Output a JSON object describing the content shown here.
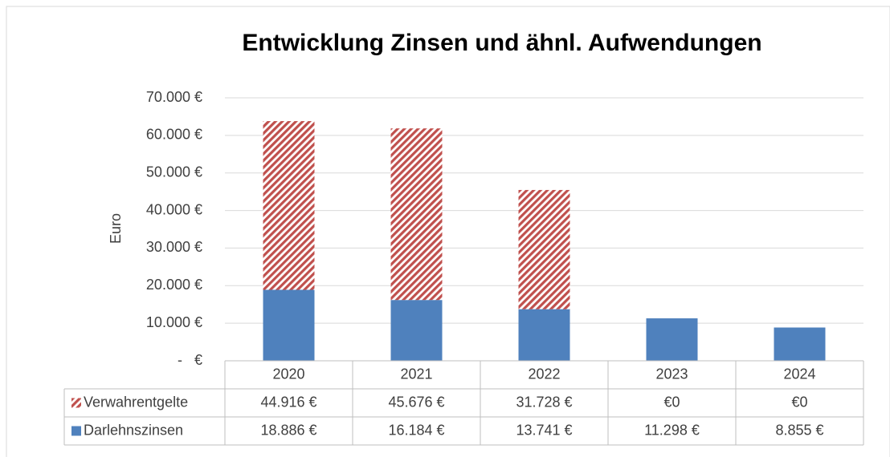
{
  "chart_data": {
    "type": "bar",
    "stacked": true,
    "title": "Entwicklung Zinsen und ähnl. Aufwendungen",
    "y_label": "Euro",
    "categories": [
      "2020",
      "2021",
      "2022",
      "2023",
      "2024"
    ],
    "series": [
      {
        "name": "Verwahrentgelte",
        "color": "#c0504d",
        "pattern": "diagonal-hatch",
        "values": [
          44916,
          45676,
          31728,
          0,
          0
        ],
        "value_labels": [
          "44.916 €",
          "45.676 €",
          "31.728 €",
          "€0",
          "€0"
        ]
      },
      {
        "name": "Darlehnszinsen",
        "color": "#4f81bd",
        "values": [
          18886,
          16184,
          13741,
          11298,
          8855
        ],
        "value_labels": [
          "18.886 €",
          "16.184 €",
          "13.741 €",
          "11.298 €",
          "8.855 €"
        ]
      }
    ],
    "ylim": [
      0,
      70000
    ],
    "yticks": [
      {
        "value": 0,
        "label": "-   €"
      },
      {
        "value": 10000,
        "label": "10.000 €"
      },
      {
        "value": 20000,
        "label": "20.000 €"
      },
      {
        "value": 30000,
        "label": "30.000 €"
      },
      {
        "value": 40000,
        "label": "40.000 €"
      },
      {
        "value": 50000,
        "label": "50.000 €"
      },
      {
        "value": 60000,
        "label": "60.000 €"
      },
      {
        "value": 70000,
        "label": "70.000 €"
      }
    ],
    "grid": true,
    "data_table": true
  }
}
